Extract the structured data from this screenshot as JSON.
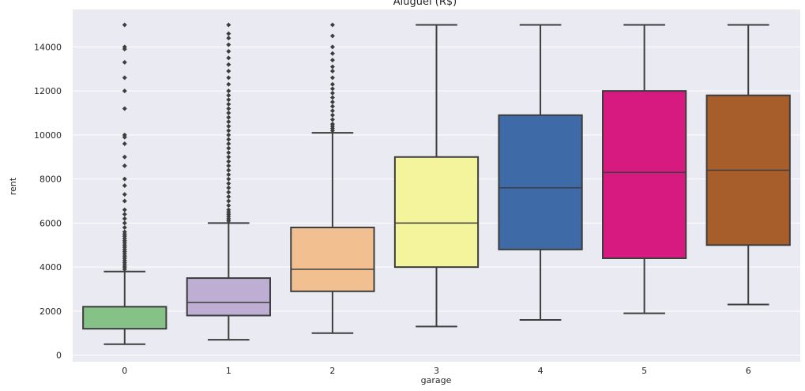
{
  "chart_data": {
    "type": "box",
    "title": "Aluguel (R$)",
    "xlabel": "garage",
    "ylabel": "rent",
    "ylim": [
      -300,
      15700
    ],
    "yticks": [
      0,
      2000,
      4000,
      6000,
      8000,
      10000,
      12000,
      14000
    ],
    "grid": true,
    "categories": [
      "0",
      "1",
      "2",
      "3",
      "4",
      "5",
      "6"
    ],
    "boxes": [
      {
        "category": "0",
        "whisker_low": 500,
        "q1": 1200,
        "median": 1200,
        "q3": 2200,
        "whisker_high": 3800,
        "color": "#86c287",
        "outliers": [
          3900,
          4000,
          4100,
          4200,
          4300,
          4400,
          4500,
          4600,
          4700,
          4800,
          4900,
          5000,
          5100,
          5200,
          5300,
          5400,
          5500,
          5600,
          5800,
          6000,
          6200,
          6400,
          6600,
          7000,
          7300,
          7700,
          8000,
          8600,
          9000,
          9600,
          9900,
          10000,
          11200,
          12000,
          12600,
          13300,
          13900,
          14000,
          15000
        ]
      },
      {
        "category": "1",
        "whisker_low": 700,
        "q1": 1800,
        "median": 2400,
        "q3": 3500,
        "whisker_high": 6000,
        "color": "#beaed4",
        "outliers": [
          6100,
          6200,
          6300,
          6400,
          6500,
          6600,
          6800,
          7000,
          7200,
          7400,
          7600,
          7800,
          8000,
          8200,
          8400,
          8600,
          8800,
          9000,
          9200,
          9400,
          9600,
          9800,
          10000,
          10200,
          10400,
          10600,
          10800,
          11000,
          11200,
          11400,
          11600,
          11800,
          12000,
          12300,
          12600,
          12900,
          13200,
          13500,
          13800,
          14100,
          14400,
          14600,
          15000
        ]
      },
      {
        "category": "2",
        "whisker_low": 1000,
        "q1": 2900,
        "median": 3900,
        "q3": 5800,
        "whisker_high": 10100,
        "color": "#f2bf90",
        "outliers": [
          10200,
          10300,
          10400,
          10500,
          10700,
          10900,
          11100,
          11300,
          11500,
          11700,
          11900,
          12100,
          12300,
          12600,
          12900,
          13100,
          13400,
          13700,
          14000,
          14500,
          15000
        ]
      },
      {
        "category": "3",
        "whisker_low": 1300,
        "q1": 4000,
        "median": 6000,
        "q3": 9000,
        "whisker_high": 15000,
        "color": "#f4f49c",
        "outliers": []
      },
      {
        "category": "4",
        "whisker_low": 1600,
        "q1": 4800,
        "median": 7600,
        "q3": 10900,
        "whisker_high": 15000,
        "color": "#3e6aa7",
        "outliers": []
      },
      {
        "category": "5",
        "whisker_low": 1900,
        "q1": 4400,
        "median": 8300,
        "q3": 12000,
        "whisker_high": 15000,
        "color": "#d61a7f",
        "outliers": []
      },
      {
        "category": "6",
        "whisker_low": 2300,
        "q1": 5000,
        "median": 8400,
        "q3": 11800,
        "whisker_high": 15000,
        "color": "#a85e2b",
        "outliers": []
      }
    ]
  }
}
